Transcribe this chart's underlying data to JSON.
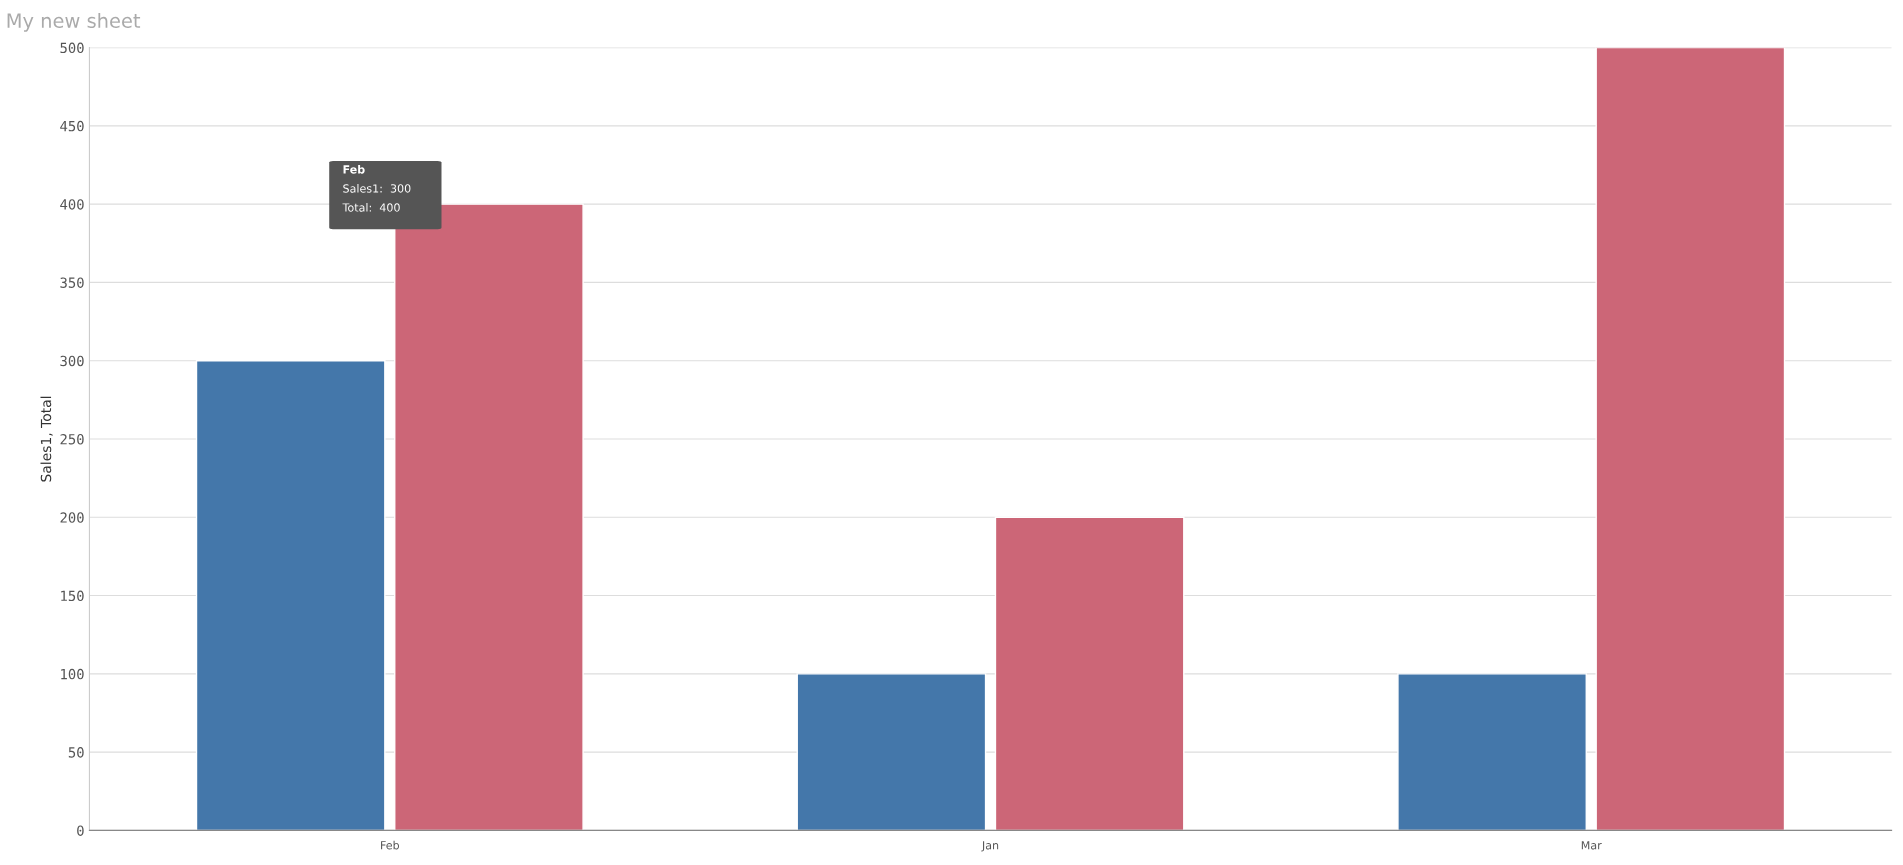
{
  "chart_data": {
    "type": "bar",
    "title": "My new sheet",
    "ylabel": "Sales1, Total",
    "categories": [
      "Feb",
      "Jan",
      "Mar"
    ],
    "series": [
      {
        "color": "#4477aa",
        "values": [
          300,
          100,
          100
        ]
      },
      {
        "color": "#cc6677",
        "values": [
          400,
          200,
          500
        ]
      }
    ],
    "ylim": [
      0,
      500
    ],
    "yticks": [
      0,
      50,
      100,
      150,
      200,
      250,
      300,
      350,
      400,
      450,
      500
    ],
    "grid": "y",
    "annotations": [
      "Feb",
      "Sales1:  300",
      "Total:  400"
    ]
  }
}
